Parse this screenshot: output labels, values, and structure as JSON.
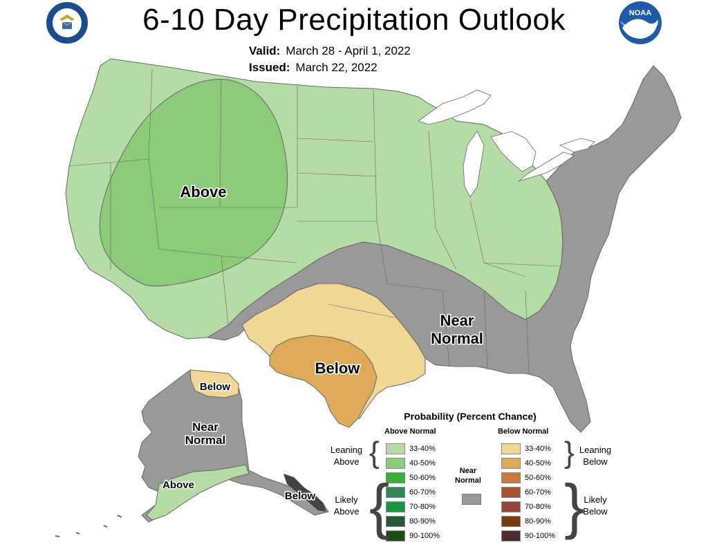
{
  "title": "6-10 Day Precipitation Outlook",
  "valid_label": "Valid:",
  "valid_value": "March 28 - April 1, 2022",
  "issued_label": "Issued:",
  "issued_value": "March 22, 2022",
  "logos": {
    "left": "Department of Commerce seal",
    "left_text": "DEPARTMENT OF COMMERCE · UNITED STATES OF AMERICA",
    "right": "NOAA logo",
    "right_text": "NOAA"
  },
  "map_labels": {
    "above": "Above",
    "below": "Below",
    "near_normal_line1": "Near",
    "near_normal_line2": "Normal",
    "ak_below_north": "Below",
    "ak_near_line1": "Near",
    "ak_near_line2": "Normal",
    "ak_above": "Above",
    "ak_below_se": "Below"
  },
  "colors": {
    "above_33_40": "#b4dca4",
    "above_40_50": "#8ccb7a",
    "above_50_60": "#3aae3a",
    "above_60_70": "#2e8b57",
    "above_70_80": "#1a9641",
    "above_80_90": "#245a36",
    "above_90_100": "#1e4a16",
    "below_33_40": "#f1d694",
    "below_40_50": "#deaa58",
    "below_50_60": "#c87a3c",
    "below_60_70": "#a8522e",
    "below_70_80": "#98443a",
    "below_80_90": "#7a3a10",
    "below_90_100": "#4c2c2a",
    "near_normal": "#999999",
    "border": "#666666"
  },
  "legend": {
    "title": "Probability (Percent Chance)",
    "above_header": "Above Normal",
    "below_header": "Below Normal",
    "leaning_above_line1": "Leaning",
    "leaning_above_line2": "Above",
    "likely_above_line1": "Likely",
    "likely_above_line2": "Above",
    "leaning_below_line1": "Leaning",
    "leaning_below_line2": "Below",
    "likely_below_line1": "Likely",
    "likely_below_line2": "Below",
    "near_line1": "Near",
    "near_line2": "Normal",
    "above_bins": [
      "33-40%",
      "40-50%",
      "50-60%",
      "60-70%",
      "70-80%",
      "80-90%",
      "90-100%"
    ],
    "below_bins": [
      "33-40%",
      "40-50%",
      "50-60%",
      "60-70%",
      "70-80%",
      "80-90%",
      "90-100%"
    ]
  }
}
